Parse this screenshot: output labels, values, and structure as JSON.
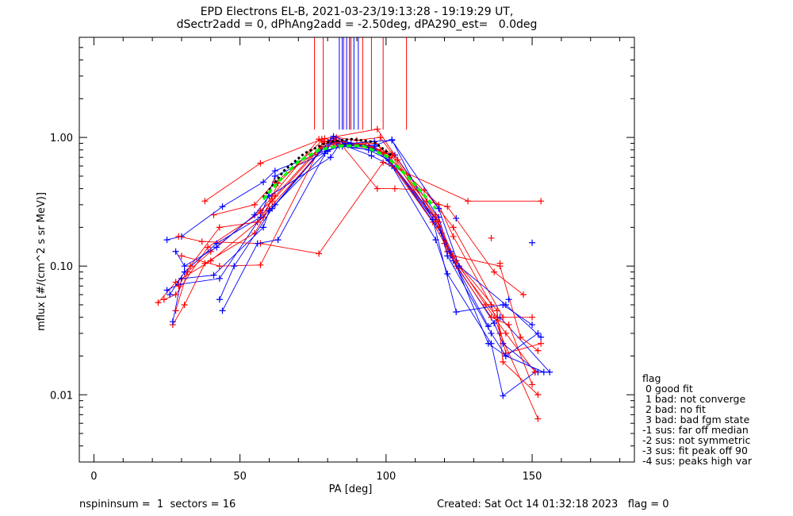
{
  "header": {
    "title_line1": "EPD Electrons EL-B, 2021-03-23/19:13:28 - 19:19:29 UT,",
    "title_line2": "dSectr2add = 0, dPhAng2add = -2.50deg, dPA290_est=   0.0deg"
  },
  "footer": {
    "left": "nspininsum =  1  sectors = 16",
    "right": "Created: Sat Oct 14 01:32:18 2023   flag = 0"
  },
  "legend": {
    "title": "flag",
    "items": [
      " 0 good fit",
      " 1 bad: not converge",
      " 2 bad: no fit",
      " 3 bad: bad fgm state",
      "-1 sus: far off median",
      "-2 sus: not symmetric",
      "-3 sus: fit peak off 90",
      "-4 sus: peaks high var"
    ]
  },
  "colors": {
    "red": "#ff0000",
    "blue": "#0000ff",
    "green": "#00ff00",
    "black": "#000000"
  },
  "chart_data": {
    "type": "line",
    "xlabel": "PA [deg]",
    "ylabel": "mflux [#/(cm^2 s sr MeV)]",
    "xlim": [
      -5,
      185
    ],
    "ylim": [
      0.003,
      6
    ],
    "yscale": "log",
    "xticks": [
      0,
      50,
      100,
      150
    ],
    "xtick_labels": [
      "0",
      "50",
      "100",
      "150"
    ],
    "yticks": [
      0.01,
      0.1,
      1.0
    ],
    "ytick_labels": [
      "0.01",
      "0.10",
      "1.00"
    ],
    "vertical_lines": {
      "red": [
        75.5,
        78.5,
        85.5,
        88,
        92,
        95,
        99,
        107
      ],
      "blue": [
        84,
        85,
        86.5,
        87.5,
        89,
        90.5
      ]
    },
    "series": [
      {
        "color": "red",
        "x": [
          22,
          28,
          40,
          58,
          63,
          78,
          83,
          95,
          101,
          118,
          123,
          136,
          139,
          152
        ],
        "y": [
          0.052,
          0.075,
          0.11,
          0.24,
          0.44,
          0.94,
          0.9,
          0.82,
          0.7,
          0.3,
          0.17,
          0.05,
          0.03,
          0.0065
        ]
      },
      {
        "color": "blue",
        "x": [
          25,
          30,
          44,
          58,
          62,
          80,
          85,
          95,
          103,
          118,
          122,
          137,
          140,
          152
        ],
        "y": [
          0.16,
          0.17,
          0.29,
          0.45,
          0.55,
          0.8,
          0.85,
          0.8,
          0.73,
          0.24,
          0.12,
          0.036,
          0.025,
          0.015
        ]
      },
      {
        "color": "red",
        "x": [
          24,
          28,
          39,
          57,
          61,
          77,
          82,
          96,
          100,
          117,
          121,
          138,
          141,
          153
        ],
        "y": [
          0.055,
          0.06,
          0.14,
          0.26,
          0.35,
          0.97,
          0.88,
          0.9,
          0.77,
          0.25,
          0.13,
          0.04,
          0.021,
          0.025
        ]
      },
      {
        "color": "blue",
        "x": [
          25,
          29,
          43,
          56,
          62,
          78,
          83,
          96,
          101,
          117,
          123,
          135,
          139,
          156
        ],
        "y": [
          0.065,
          0.072,
          0.08,
          0.22,
          0.3,
          0.82,
          0.93,
          0.85,
          0.66,
          0.22,
          0.11,
          0.034,
          0.04,
          0.015
        ]
      },
      {
        "color": "red",
        "x": [
          27,
          31,
          38,
          55,
          60,
          80,
          85,
          94,
          102,
          118,
          124,
          136,
          142,
          150
        ],
        "y": [
          0.035,
          0.05,
          0.105,
          0.18,
          0.28,
          0.9,
          0.92,
          0.85,
          0.72,
          0.2,
          0.1,
          0.04,
          0.035,
          0.012
        ]
      },
      {
        "color": "blue",
        "x": [
          27,
          30,
          41,
          58,
          60,
          79,
          81,
          95,
          102,
          117,
          121,
          136,
          140,
          151
        ],
        "y": [
          0.037,
          0.08,
          0.085,
          0.2,
          0.27,
          0.75,
          0.95,
          0.72,
          0.6,
          0.16,
          0.087,
          0.025,
          0.0098,
          0.015
        ]
      },
      {
        "color": "red",
        "x": [
          28,
          32,
          40,
          57,
          61,
          78,
          84,
          93,
          99,
          116,
          120,
          134,
          141,
          151
        ],
        "y": [
          0.045,
          0.09,
          0.13,
          0.27,
          0.32,
          0.85,
          0.86,
          0.92,
          0.75,
          0.22,
          0.15,
          0.05,
          0.03,
          0.015
        ]
      },
      {
        "color": "blue",
        "x": [
          26,
          31,
          42,
          57,
          62,
          80,
          86,
          96,
          103,
          119,
          122,
          135,
          141,
          152
        ],
        "y": [
          0.06,
          0.09,
          0.15,
          0.24,
          0.5,
          0.78,
          0.9,
          0.82,
          0.58,
          0.18,
          0.13,
          0.025,
          0.02,
          0.03
        ]
      },
      {
        "color": "red",
        "x": [
          29,
          33,
          43,
          56,
          62,
          79,
          83,
          92,
          98,
          117,
          124,
          138,
          140,
          152
        ],
        "y": [
          0.07,
          0.1,
          0.2,
          0.22,
          0.35,
          0.93,
          0.95,
          0.88,
          0.8,
          0.23,
          0.11,
          0.045,
          0.018,
          0.01
        ]
      },
      {
        "color": "blue",
        "x": [
          28,
          31,
          42,
          55,
          60,
          81,
          84,
          94,
          101,
          118,
          121,
          136,
          141,
          154
        ],
        "y": [
          0.13,
          0.1,
          0.14,
          0.25,
          0.35,
          0.7,
          0.88,
          0.8,
          0.67,
          0.22,
          0.12,
          0.03,
          0.02,
          0.015
        ]
      },
      {
        "color": "red",
        "x": [
          38,
          57,
          78,
          97,
          104,
          114,
          121,
          137,
          147
        ],
        "y": [
          0.32,
          0.63,
          0.97,
          1.16,
          0.67,
          0.32,
          0.29,
          0.09,
          0.06
        ]
      },
      {
        "color": "red",
        "x": [
          29,
          37,
          57,
          77,
          99,
          128,
          153
        ],
        "y": [
          0.17,
          0.155,
          0.15,
          0.125,
          0.64,
          0.32,
          0.32
        ]
      },
      {
        "color": "red",
        "x": [
          30,
          43,
          57,
          79,
          84,
          97,
          103,
          113,
          123,
          140,
          150
        ],
        "y": [
          0.12,
          0.1,
          0.102,
          0.98,
          0.92,
          0.4,
          0.4,
          0.39,
          0.2,
          0.04,
          0.04
        ]
      },
      {
        "color": "blue",
        "x": [
          44,
          56,
          63,
          82,
          87,
          96,
          102,
          116,
          124,
          140,
          150
        ],
        "y": [
          0.045,
          0.15,
          0.16,
          0.98,
          0.87,
          0.87,
          0.96,
          0.23,
          0.044,
          0.05,
          0.035
        ]
      },
      {
        "color": "red",
        "x": [
          41,
          55,
          62,
          83,
          90,
          98,
          102,
          118,
          123,
          139,
          146,
          152
        ],
        "y": [
          0.25,
          0.3,
          0.45,
          1.0,
          0.95,
          1.0,
          0.75,
          0.22,
          0.12,
          0.1,
          0.028,
          0.022
        ]
      },
      {
        "color": "blue",
        "x": [
          43,
          48,
          61,
          82,
          88,
          96,
          102,
          118,
          125,
          141,
          153
        ],
        "y": [
          0.055,
          0.1,
          0.28,
          1.02,
          0.9,
          0.93,
          0.95,
          0.28,
          0.1,
          0.05,
          0.028
        ]
      }
    ],
    "fit_black": {
      "x": [
        58,
        65,
        72,
        80,
        88,
        96,
        102
      ],
      "y": [
        0.34,
        0.55,
        0.75,
        0.92,
        0.97,
        0.92,
        0.72
      ]
    },
    "fit_green": {
      "x": [
        58,
        63,
        70,
        77,
        84,
        92,
        100,
        108,
        117
      ],
      "y": [
        0.33,
        0.45,
        0.65,
        0.8,
        0.86,
        0.86,
        0.72,
        0.48,
        0.28
      ]
    },
    "isolated_points": [
      {
        "color": "blue",
        "x": 150,
        "y": 0.152
      },
      {
        "color": "blue",
        "x": 124,
        "y": 0.235
      },
      {
        "color": "blue",
        "x": 142,
        "y": 0.055
      },
      {
        "color": "red",
        "x": 136,
        "y": 0.165
      },
      {
        "color": "red",
        "x": 139,
        "y": 0.105
      }
    ]
  }
}
